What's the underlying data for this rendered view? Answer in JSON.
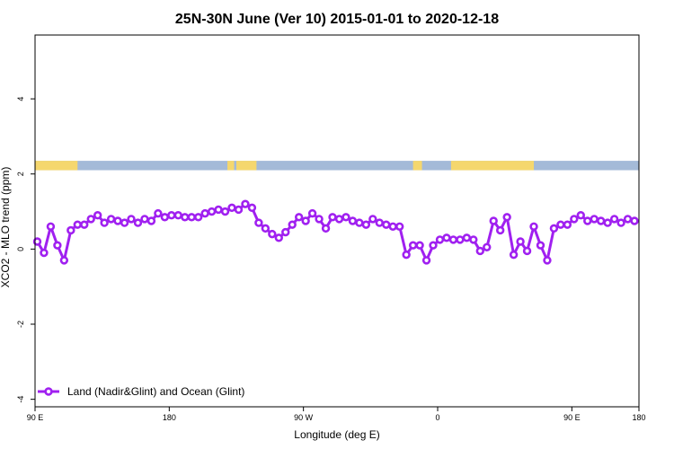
{
  "chart_data": {
    "type": "line",
    "title": "25N-30N June (Ver 10)   2015-01-01 to 2020-12-18",
    "xlabel": "Longitude (deg E)",
    "ylabel": "XCO2 - MLO trend (ppm)",
    "xlim": [
      -90,
      180
    ],
    "ylim": [
      -4.2,
      5.7
    ],
    "x_tick_values": [
      -90,
      -30,
      30,
      90,
      150,
      180
    ],
    "x_tick_labels": [
      "90 E",
      "180",
      "90 W",
      "0",
      "90 E",
      "180"
    ],
    "y_ticks": [
      -4,
      -2,
      0,
      2,
      4
    ],
    "legend": {
      "position": "bottom-left"
    },
    "series": [
      {
        "name": "Land (Nadir&Glint) and Ocean (Glint)",
        "color": "#A020F0",
        "x": [
          -89,
          -86,
          -83,
          -80,
          -77,
          -74,
          -71,
          -68,
          -65,
          -62,
          -59,
          -56,
          -53,
          -50,
          -47,
          -44,
          -41,
          -38,
          -35,
          -32,
          -29,
          -26,
          -23,
          -20,
          -17,
          -14,
          -11,
          -8,
          -5,
          -2,
          1,
          4,
          7,
          10,
          13,
          16,
          19,
          22,
          25,
          28,
          31,
          34,
          37,
          40,
          43,
          46,
          49,
          52,
          55,
          58,
          61,
          64,
          67,
          70,
          73,
          76,
          79,
          82,
          85,
          88,
          91,
          94,
          97,
          100,
          103,
          106,
          109,
          112,
          115,
          118,
          121,
          124,
          127,
          130,
          133,
          136,
          139,
          142,
          145,
          148,
          151,
          154,
          157,
          160,
          163,
          166,
          169,
          172,
          175,
          178
        ],
        "y": [
          0.2,
          -0.1,
          0.6,
          0.1,
          -0.3,
          0.5,
          0.65,
          0.65,
          0.8,
          0.9,
          0.7,
          0.8,
          0.75,
          0.7,
          0.8,
          0.7,
          0.8,
          0.75,
          0.95,
          0.85,
          0.9,
          0.9,
          0.85,
          0.85,
          0.85,
          0.95,
          1.0,
          1.05,
          1.0,
          1.1,
          1.05,
          1.2,
          1.1,
          0.7,
          0.55,
          0.4,
          0.3,
          0.45,
          0.65,
          0.85,
          0.75,
          0.95,
          0.8,
          0.55,
          0.85,
          0.8,
          0.85,
          0.75,
          0.7,
          0.65,
          0.8,
          0.7,
          0.65,
          0.6,
          0.6,
          -0.15,
          0.1,
          0.1,
          -0.3,
          0.1,
          0.25,
          0.3,
          0.25,
          0.25,
          0.3,
          0.25,
          -0.05,
          0.05,
          0.75,
          0.5,
          0.85,
          -0.15,
          0.2,
          -0.05,
          0.6,
          0.1,
          -0.3,
          0.55,
          0.65,
          0.65,
          0.8,
          0.9,
          0.75,
          0.8,
          0.75,
          0.7,
          0.8,
          0.7,
          0.8,
          0.75
        ]
      }
    ],
    "band": {
      "y_range": [
        2.1,
        2.35
      ],
      "land_color": "#F5D76E",
      "ocean_color": "#A4BAD8",
      "land_segments": [
        [
          -90,
          -71
        ],
        [
          -4,
          -1
        ],
        [
          0,
          9
        ],
        [
          79,
          83
        ],
        [
          96,
          133
        ]
      ]
    }
  }
}
